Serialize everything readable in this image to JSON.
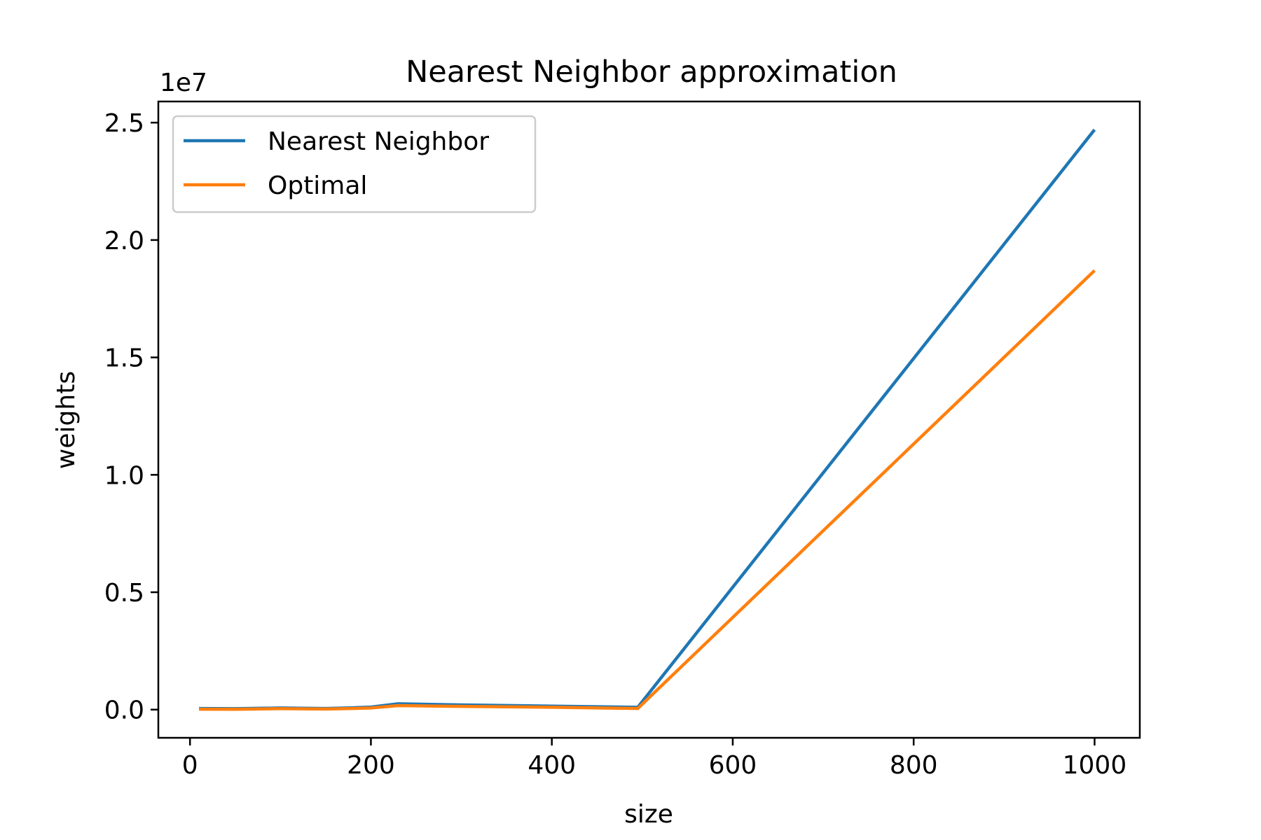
{
  "chart_data": {
    "type": "line",
    "title": "Nearest Neighbor approximation",
    "xlabel": "size",
    "ylabel": "weights",
    "y_offset_label": "1e7",
    "xlim": [
      -35,
      1050
    ],
    "ylim": [
      -1200000,
      25900000
    ],
    "x_ticks": [
      0,
      200,
      400,
      600,
      800,
      1000
    ],
    "x_tick_labels": [
      "0",
      "200",
      "400",
      "600",
      "800",
      "1000"
    ],
    "y_ticks": [
      0,
      5000000,
      10000000,
      15000000,
      20000000,
      25000000
    ],
    "y_tick_labels": [
      "0.0",
      "0.5",
      "1.0",
      "1.5",
      "2.0",
      "2.5"
    ],
    "grid": false,
    "legend_position": "top-left",
    "series": [
      {
        "name": "Nearest Neighbor",
        "color": "#1f77b4",
        "x": [
          10,
          50,
          100,
          150,
          180,
          200,
          230,
          300,
          400,
          495,
          1000
        ],
        "y": [
          50000,
          40000,
          70000,
          50000,
          80000,
          110000,
          250000,
          200000,
          150000,
          100000,
          24700000
        ]
      },
      {
        "name": "Optimal",
        "color": "#ff7f0e",
        "x": [
          10,
          50,
          100,
          150,
          180,
          200,
          230,
          300,
          400,
          495,
          1000
        ],
        "y": [
          20000,
          15000,
          40000,
          25000,
          50000,
          70000,
          170000,
          140000,
          100000,
          50000,
          18700000
        ]
      }
    ]
  }
}
